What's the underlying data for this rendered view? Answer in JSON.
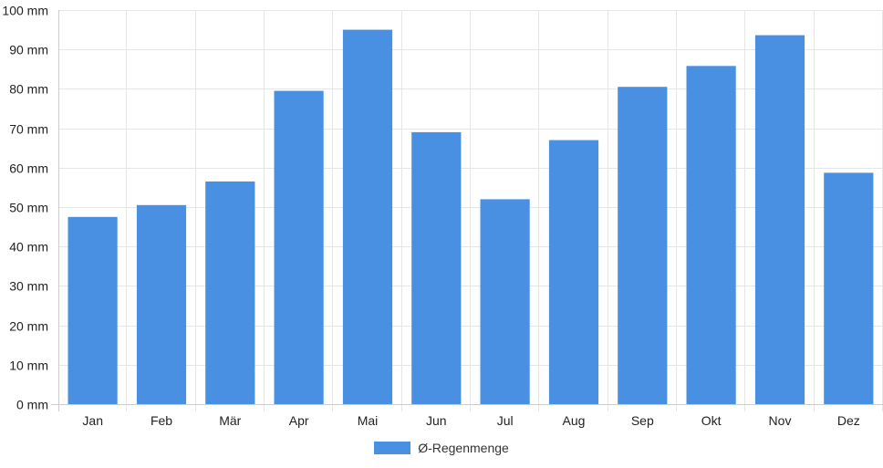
{
  "chart_data": {
    "type": "bar",
    "categories": [
      "Jan",
      "Feb",
      "Mär",
      "Apr",
      "Mai",
      "Jun",
      "Jul",
      "Aug",
      "Sep",
      "Okt",
      "Nov",
      "Dez"
    ],
    "series": [
      {
        "name": "Ø-Regenmenge",
        "values": [
          47.5,
          50.5,
          56.5,
          79.5,
          95,
          69,
          52,
          67,
          80.5,
          85.8,
          93.6,
          58.7
        ],
        "color": "#4a90e2"
      }
    ],
    "y_unit": "mm",
    "ylim": [
      0,
      100
    ],
    "yticks": [
      0,
      10,
      20,
      30,
      40,
      50,
      60,
      70,
      80,
      90,
      100
    ],
    "ytick_labels": [
      "0 mm",
      "10 mm",
      "20 mm",
      "30 mm",
      "40 mm",
      "50 mm",
      "60 mm",
      "70 mm",
      "80 mm",
      "90 mm",
      "100 mm"
    ],
    "grid": true,
    "legend_position": "bottom",
    "title": "",
    "xlabel": "",
    "ylabel": ""
  }
}
